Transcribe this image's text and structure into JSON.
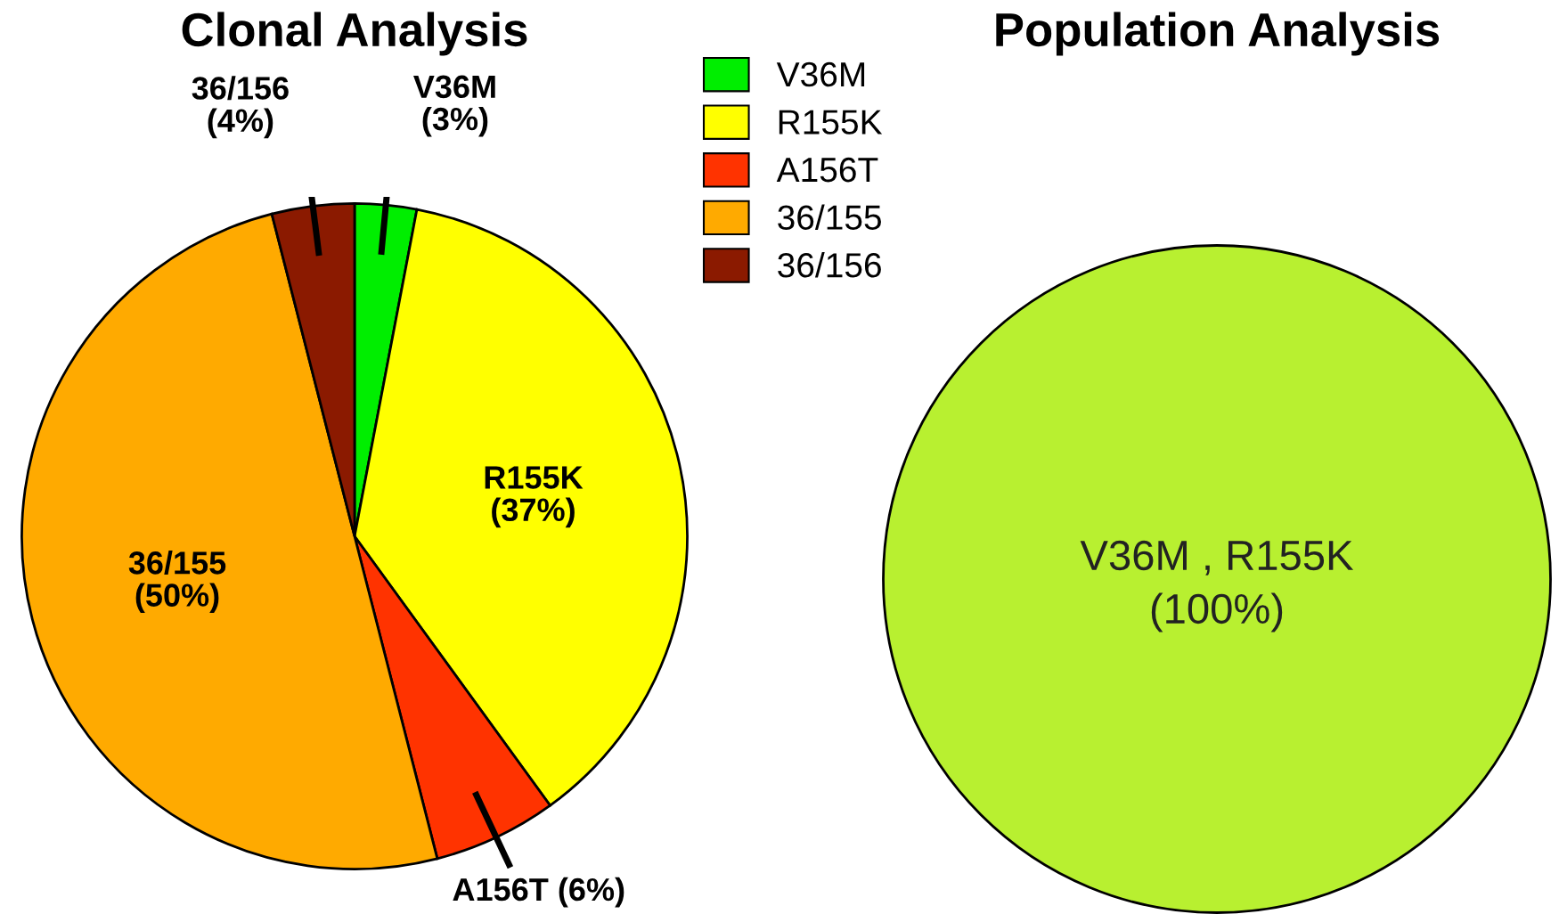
{
  "chart_data": [
    {
      "type": "pie",
      "title": "Clonal Analysis",
      "categories": [
        "V36M",
        "R155K",
        "A156T",
        "36/155",
        "36/156"
      ],
      "values": [
        3,
        37,
        6,
        50,
        4
      ],
      "colors": [
        "#00ee00",
        "#ffff00",
        "#ff3300",
        "#ffaa00",
        "#8b1a00"
      ],
      "value_labels": [
        "V36M\n(3%)",
        "R155K\n(37%)",
        "A156T (6%)",
        "36/155\n(50%)",
        "36/156\n(4%)"
      ],
      "legend": "top right"
    },
    {
      "type": "pie",
      "title": "Population Analysis",
      "categories": [
        "V36M , R155K"
      ],
      "values": [
        100
      ],
      "colors": [
        "#b8f030"
      ],
      "value_labels": [
        "(100%)"
      ],
      "legend": false
    }
  ]
}
